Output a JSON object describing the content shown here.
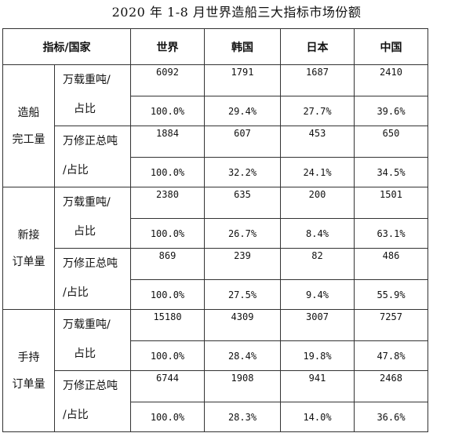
{
  "title": "2020 年 1-8 月世界造船三大指标市场份额",
  "header": {
    "corner": "指标/国家",
    "cols": [
      "世界",
      "韩国",
      "日本",
      "中国"
    ]
  },
  "groups": [
    {
      "label_lines": [
        "造船",
        "完工量"
      ],
      "metrics": [
        {
          "line1": "万载重吨/",
          "line2": "占比",
          "values": [
            "6092",
            "1791",
            "1687",
            "2410"
          ],
          "shares": [
            "100.0%",
            "29.4%",
            "27.7%",
            "39.6%"
          ]
        },
        {
          "line1": "万修正总吨",
          "line2": "/占比",
          "values": [
            "1884",
            "607",
            "453",
            "650"
          ],
          "shares": [
            "100.0%",
            "32.2%",
            "24.1%",
            "34.5%"
          ]
        }
      ]
    },
    {
      "label_lines": [
        "新接",
        "订单量"
      ],
      "metrics": [
        {
          "line1": "万载重吨/",
          "line2": "占比",
          "values": [
            "2380",
            "635",
            "200",
            "1501"
          ],
          "shares": [
            "100.0%",
            "26.7%",
            "8.4%",
            "63.1%"
          ]
        },
        {
          "line1": "万修正总吨",
          "line2": "/占比",
          "values": [
            "869",
            "239",
            "82",
            "486"
          ],
          "shares": [
            "100.0%",
            "27.5%",
            "9.4%",
            "55.9%"
          ]
        }
      ]
    },
    {
      "label_lines": [
        "手持",
        "订单量"
      ],
      "metrics": [
        {
          "line1": "万载重吨/",
          "line2": "占比",
          "values": [
            "15180",
            "4309",
            "3007",
            "7257"
          ],
          "shares": [
            "100.0%",
            "28.4%",
            "19.8%",
            "47.8%"
          ]
        },
        {
          "line1": "万修正总吨",
          "line2": "/占比",
          "values": [
            "6744",
            "1908",
            "941",
            "2468"
          ],
          "shares": [
            "100.0%",
            "28.3%",
            "14.0%",
            "36.6%"
          ]
        }
      ]
    }
  ]
}
